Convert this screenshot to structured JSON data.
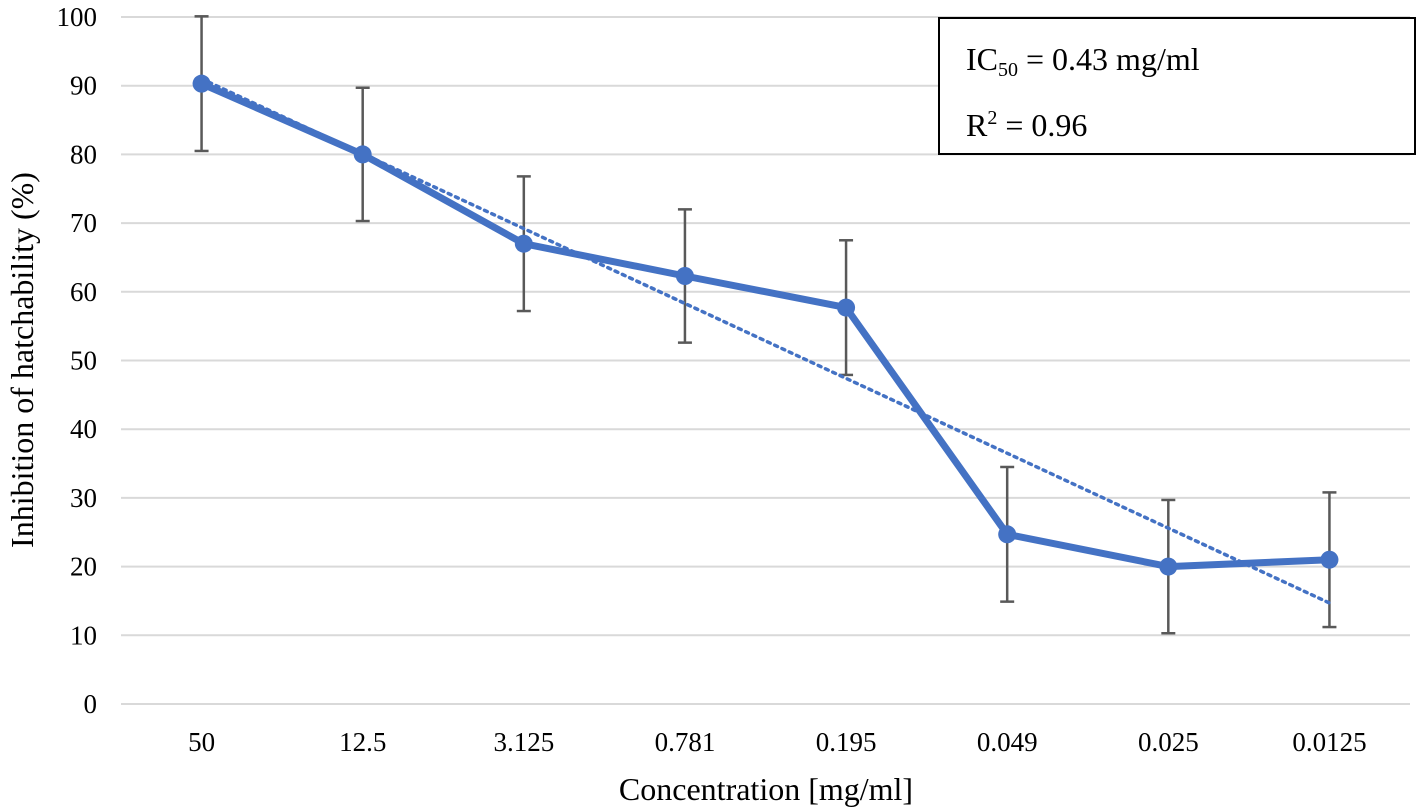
{
  "chart_data": {
    "type": "line",
    "title": "",
    "xlabel": "Concentration [mg/ml]",
    "ylabel": "Inhibition of hatchability (%)",
    "categories": [
      "50",
      "12.5",
      "3.125",
      "0.781",
      "0.195",
      "0.049",
      "0.025",
      "0.0125"
    ],
    "ylim": [
      0,
      100
    ],
    "yticks": [
      0,
      10,
      20,
      30,
      40,
      50,
      60,
      70,
      80,
      90,
      100
    ],
    "grid": true,
    "series": [
      {
        "name": "Inhibition",
        "values": [
          90.3,
          80.0,
          67.0,
          62.3,
          57.7,
          24.7,
          20.0,
          21.0
        ],
        "error": [
          9.8,
          9.7,
          9.8,
          9.7,
          9.8,
          9.8,
          9.7,
          9.8
        ],
        "color": "#4472C4"
      },
      {
        "name": "Linear trend",
        "style": "dotted",
        "start": 91.0,
        "end": 14.7,
        "color": "#4472C4"
      }
    ],
    "annotations": {
      "ic50": {
        "label": "IC",
        "subscript": "50",
        "value": " = 0.43 mg/ml"
      },
      "r2": {
        "label": "R",
        "superscript": "2",
        "value": " = 0.96"
      }
    }
  }
}
